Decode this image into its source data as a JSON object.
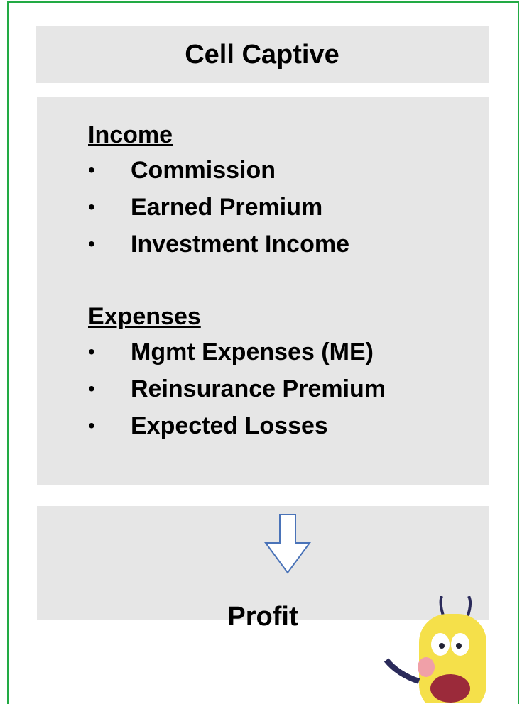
{
  "title": "Cell Captive",
  "sections": [
    {
      "heading": "Income",
      "items": [
        "Commission",
        "Earned Premium",
        "Investment Income"
      ]
    },
    {
      "heading": "Expenses",
      "items": [
        "Mgmt Expenses (ME)",
        "Reinsurance Premium",
        "Expected Losses"
      ]
    }
  ],
  "result": "Profit"
}
